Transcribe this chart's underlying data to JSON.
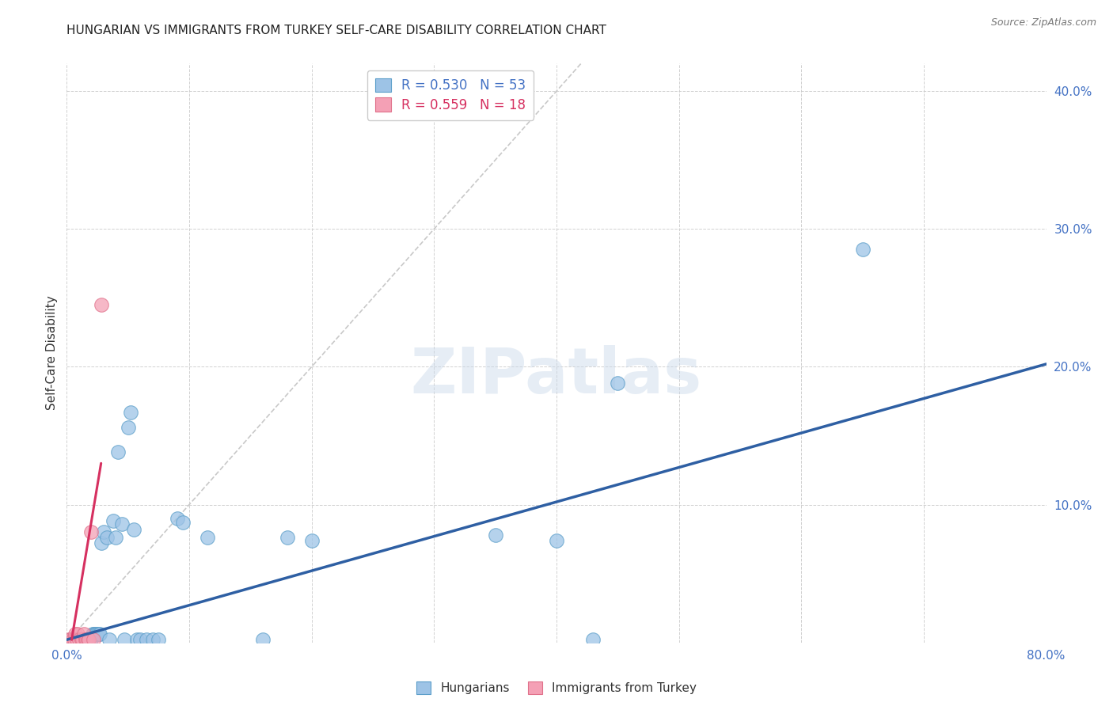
{
  "title": "HUNGARIAN VS IMMIGRANTS FROM TURKEY SELF-CARE DISABILITY CORRELATION CHART",
  "source": "Source: ZipAtlas.com",
  "ylabel": "Self-Care Disability",
  "xlim": [
    0.0,
    0.8
  ],
  "ylim": [
    0.0,
    0.42
  ],
  "xticks": [
    0.0,
    0.1,
    0.2,
    0.3,
    0.4,
    0.5,
    0.6,
    0.7,
    0.8
  ],
  "yticks": [
    0.0,
    0.1,
    0.2,
    0.3,
    0.4
  ],
  "title_color": "#222222",
  "axis_color": "#4472c4",
  "watermark": "ZIPatlas",
  "legend_r1": "R = 0.530",
  "legend_n1": "N = 53",
  "legend_r2": "R = 0.559",
  "legend_n2": "N = 18",
  "hungarian_color": "#9DC3E6",
  "turkey_color": "#F4A0B5",
  "hungarian_edge": "#5B9EC9",
  "turkey_edge": "#E0708A",
  "trendline_hungarian_color": "#2E5FA3",
  "trendline_turkey_color": "#D63060",
  "identity_line_color": "#BBBBBB",
  "hungarian_points": [
    [
      0.003,
      0.002
    ],
    [
      0.004,
      0.002
    ],
    [
      0.005,
      0.002
    ],
    [
      0.006,
      0.002
    ],
    [
      0.007,
      0.002
    ],
    [
      0.008,
      0.002
    ],
    [
      0.009,
      0.002
    ],
    [
      0.01,
      0.002
    ],
    [
      0.011,
      0.002
    ],
    [
      0.012,
      0.002
    ],
    [
      0.013,
      0.002
    ],
    [
      0.014,
      0.002
    ],
    [
      0.015,
      0.002
    ],
    [
      0.016,
      0.002
    ],
    [
      0.017,
      0.002
    ],
    [
      0.018,
      0.002
    ],
    [
      0.019,
      0.002
    ],
    [
      0.02,
      0.002
    ],
    [
      0.021,
      0.006
    ],
    [
      0.022,
      0.006
    ],
    [
      0.023,
      0.006
    ],
    [
      0.024,
      0.006
    ],
    [
      0.025,
      0.006
    ],
    [
      0.026,
      0.006
    ],
    [
      0.027,
      0.006
    ],
    [
      0.028,
      0.072
    ],
    [
      0.03,
      0.08
    ],
    [
      0.033,
      0.076
    ],
    [
      0.035,
      0.002
    ],
    [
      0.038,
      0.088
    ],
    [
      0.04,
      0.076
    ],
    [
      0.042,
      0.138
    ],
    [
      0.045,
      0.086
    ],
    [
      0.047,
      0.002
    ],
    [
      0.05,
      0.156
    ],
    [
      0.052,
      0.167
    ],
    [
      0.055,
      0.082
    ],
    [
      0.057,
      0.002
    ],
    [
      0.06,
      0.002
    ],
    [
      0.065,
      0.002
    ],
    [
      0.07,
      0.002
    ],
    [
      0.075,
      0.002
    ],
    [
      0.09,
      0.09
    ],
    [
      0.095,
      0.087
    ],
    [
      0.115,
      0.076
    ],
    [
      0.16,
      0.002
    ],
    [
      0.18,
      0.076
    ],
    [
      0.2,
      0.074
    ],
    [
      0.35,
      0.078
    ],
    [
      0.4,
      0.074
    ],
    [
      0.43,
      0.002
    ],
    [
      0.65,
      0.285
    ],
    [
      0.45,
      0.188
    ]
  ],
  "turkey_points": [
    [
      0.002,
      0.002
    ],
    [
      0.003,
      0.002
    ],
    [
      0.005,
      0.002
    ],
    [
      0.006,
      0.002
    ],
    [
      0.007,
      0.006
    ],
    [
      0.008,
      0.002
    ],
    [
      0.009,
      0.006
    ],
    [
      0.01,
      0.002
    ],
    [
      0.012,
      0.002
    ],
    [
      0.013,
      0.002
    ],
    [
      0.014,
      0.006
    ],
    [
      0.015,
      0.002
    ],
    [
      0.016,
      0.002
    ],
    [
      0.017,
      0.002
    ],
    [
      0.018,
      0.002
    ],
    [
      0.02,
      0.08
    ],
    [
      0.022,
      0.002
    ],
    [
      0.028,
      0.245
    ]
  ],
  "hun_trend_x": [
    0.0,
    0.8
  ],
  "hun_trend_y": [
    0.002,
    0.202
  ],
  "tur_trend_x": [
    0.004,
    0.028
  ],
  "tur_trend_y": [
    0.002,
    0.13
  ]
}
